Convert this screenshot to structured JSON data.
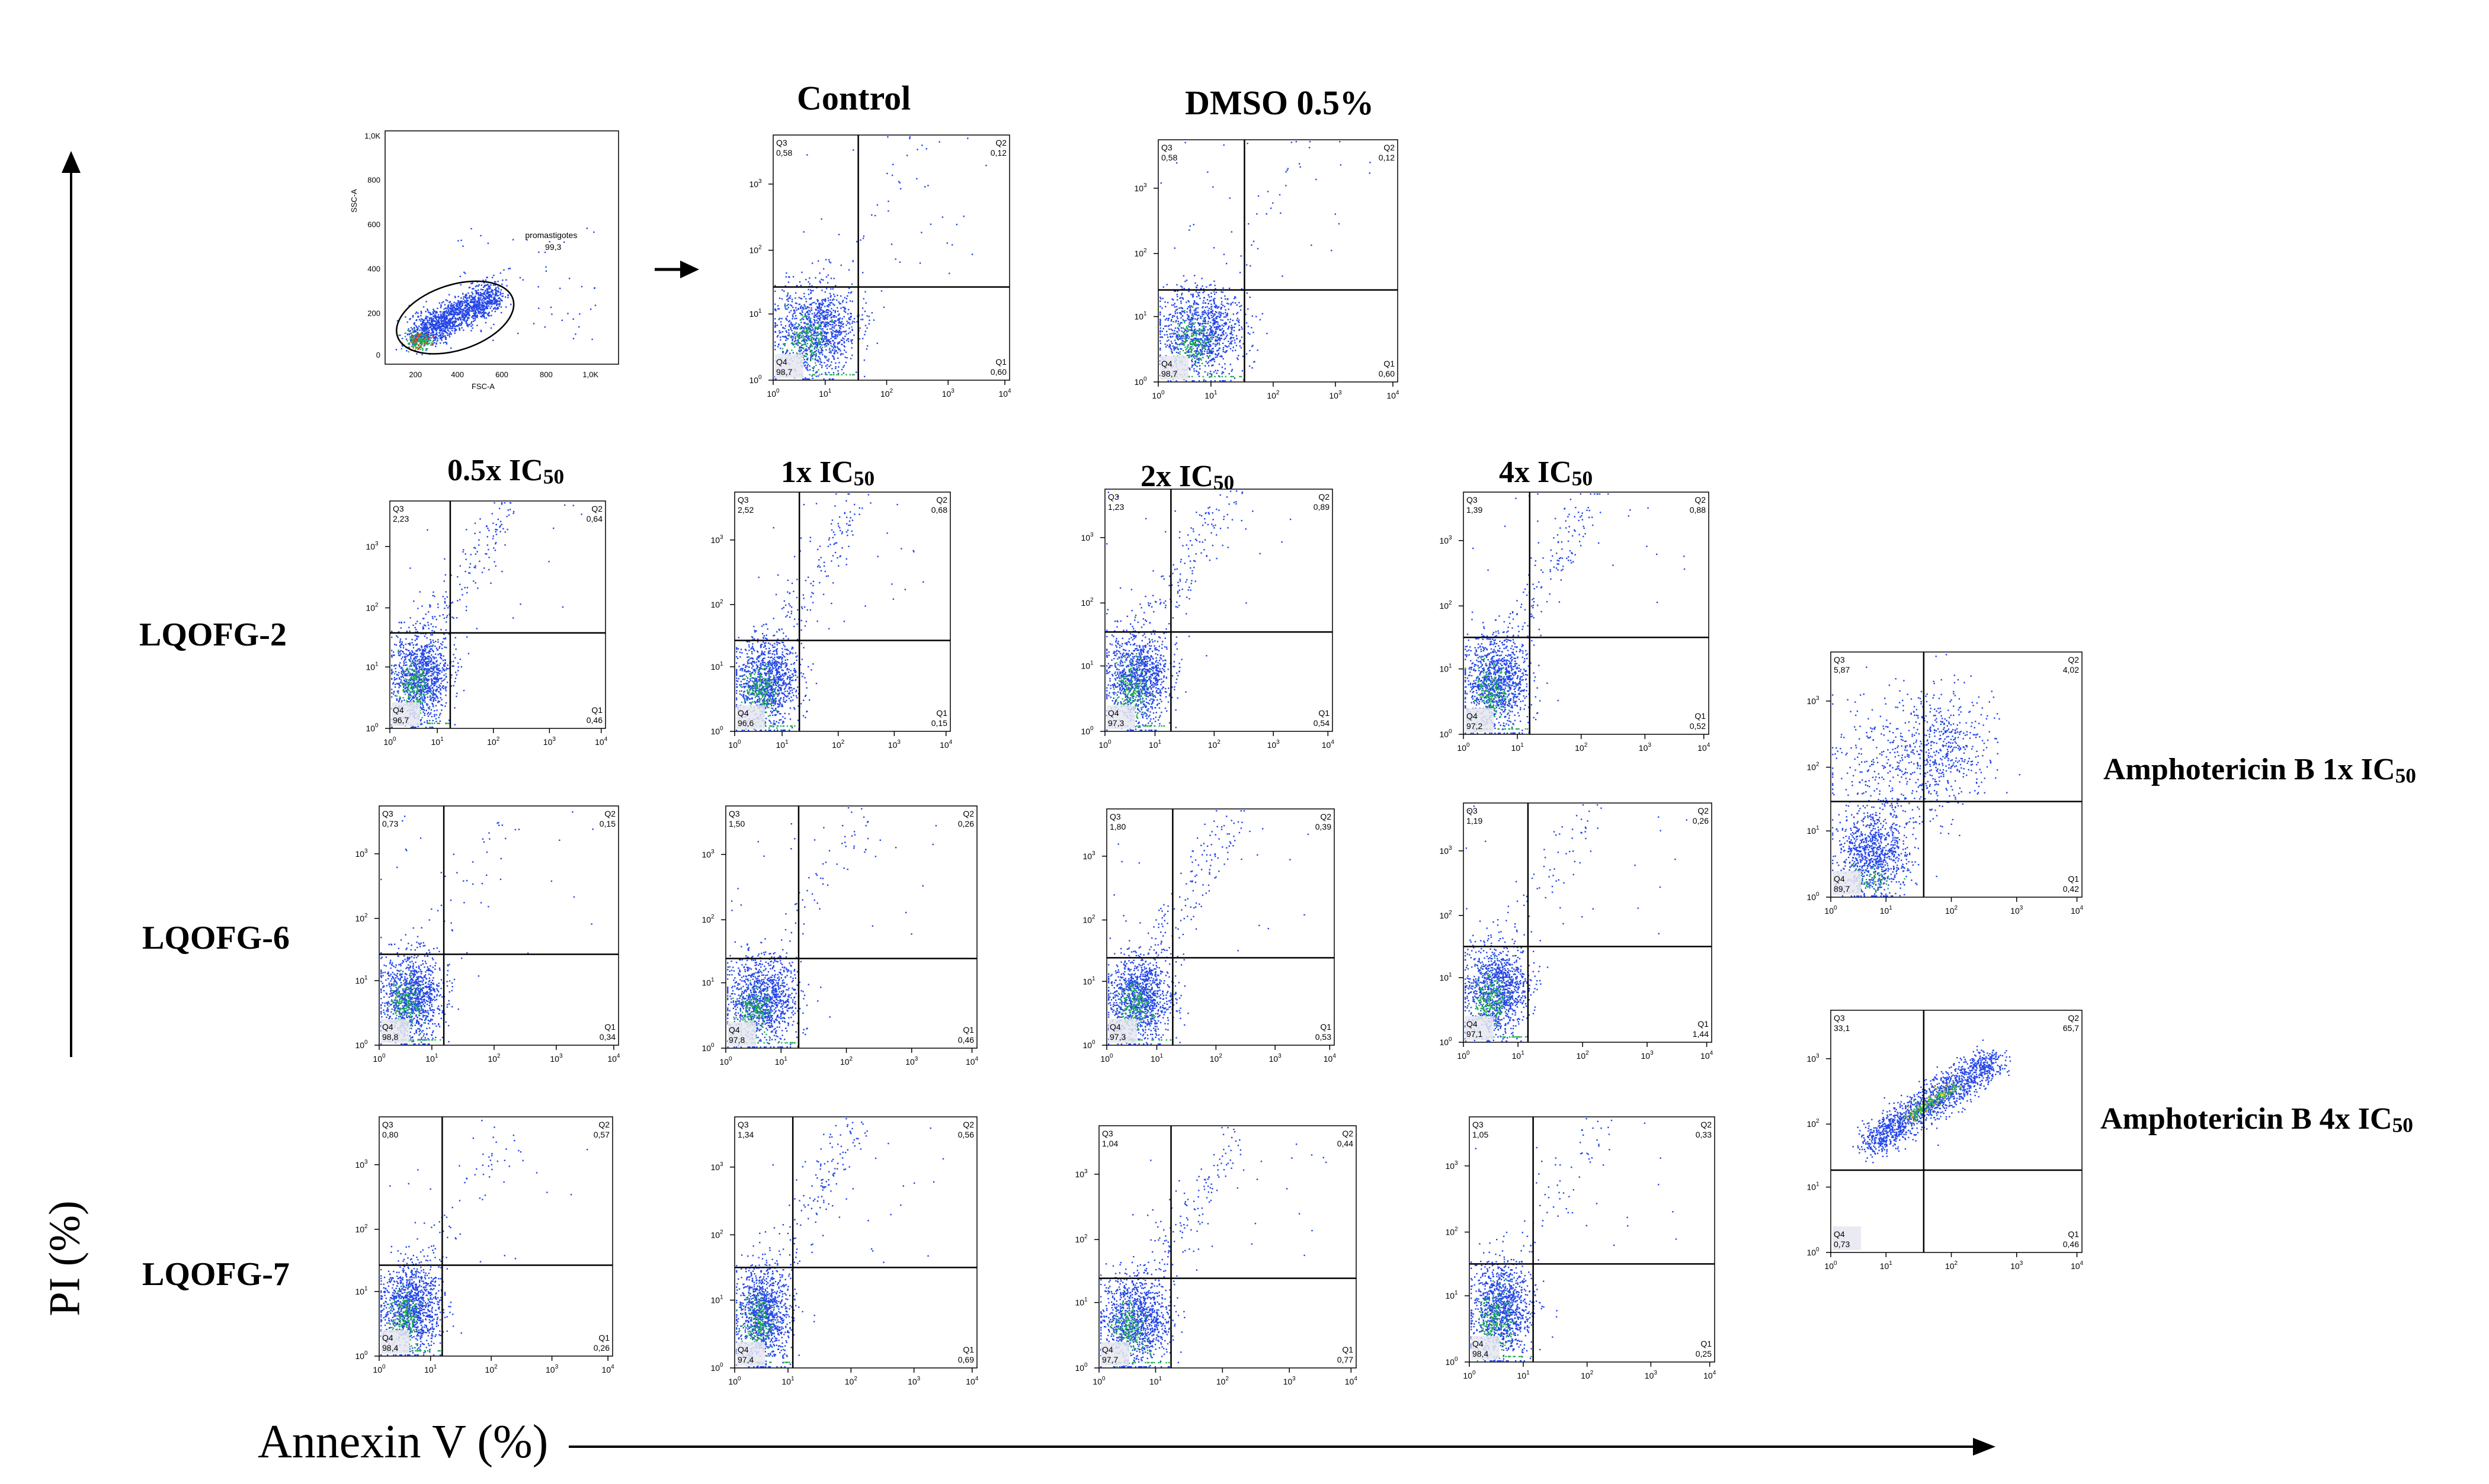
{
  "figure": {
    "y_axis_label": "PI (%)",
    "x_axis_label": "Annexin V (%)",
    "column_headers": [
      "Control",
      "DMSO 0.5%",
      "0.5x IC",
      "1x IC",
      "2x IC",
      "4x IC"
    ],
    "ic_subscript": "50",
    "row_labels": [
      "LQOFG-2",
      "LQOFG-6",
      "LQOFG-7"
    ],
    "side_labels": [
      "Amphotericin B 1x IC",
      "Amphotericin B 4x IC"
    ],
    "colors": {
      "points": "#2446e8",
      "dense": "#22b14c",
      "core": "#ff3300",
      "axis": "#000000"
    }
  },
  "chart_data": [
    {
      "id": "gate",
      "type": "scatter",
      "title": "",
      "xlabel": "FSC-A",
      "ylabel": "SSC-A",
      "x_ticks": [
        "200",
        "400",
        "600",
        "800",
        "1,0K"
      ],
      "y_ticks": [
        "0",
        "200",
        "400",
        "600",
        "800",
        "1,0K"
      ],
      "gate_label": "promastigotes",
      "gate_value": "99,3"
    },
    {
      "id": "control",
      "type": "scatter",
      "title": "Control",
      "xlabel": "Annexin V",
      "ylabel": "PI",
      "quadrants": {
        "Q1": "0,60",
        "Q2": "0,12",
        "Q3": "0,58",
        "Q4": "98,7"
      }
    },
    {
      "id": "dmso",
      "type": "scatter",
      "title": "DMSO 0.5%",
      "xlabel": "Annexin V",
      "ylabel": "PI",
      "quadrants": {
        "Q1": "0,60",
        "Q2": "0,12",
        "Q3": "0,58",
        "Q4": "98,7"
      }
    },
    {
      "id": "lq2_05",
      "type": "scatter",
      "row": "LQOFG-2",
      "column": "0.5x IC50",
      "quadrants": {
        "Q1": "0,46",
        "Q2": "0,64",
        "Q3": "2,23",
        "Q4": "96,7"
      }
    },
    {
      "id": "lq2_1",
      "type": "scatter",
      "row": "LQOFG-2",
      "column": "1x IC50",
      "quadrants": {
        "Q1": "0,15",
        "Q2": "0,68",
        "Q3": "2,52",
        "Q4": "96,6"
      }
    },
    {
      "id": "lq2_2",
      "type": "scatter",
      "row": "LQOFG-2",
      "column": "2x IC50",
      "quadrants": {
        "Q1": "0,54",
        "Q2": "0,89",
        "Q3": "1,23",
        "Q4": "97,3"
      }
    },
    {
      "id": "lq2_4",
      "type": "scatter",
      "row": "LQOFG-2",
      "column": "4x IC50",
      "quadrants": {
        "Q1": "0,52",
        "Q2": "0,88",
        "Q3": "1,39",
        "Q4": "97,2"
      }
    },
    {
      "id": "lq6_05",
      "type": "scatter",
      "row": "LQOFG-6",
      "column": "0.5x IC50",
      "quadrants": {
        "Q1": "0,34",
        "Q2": "0,15",
        "Q3": "0,73",
        "Q4": "98,8"
      }
    },
    {
      "id": "lq6_1",
      "type": "scatter",
      "row": "LQOFG-6",
      "column": "1x IC50",
      "quadrants": {
        "Q1": "0,46",
        "Q2": "0,26",
        "Q3": "1,50",
        "Q4": "97,8"
      }
    },
    {
      "id": "lq6_2",
      "type": "scatter",
      "row": "LQOFG-6",
      "column": "2x IC50",
      "quadrants": {
        "Q1": "0,53",
        "Q2": "0,39",
        "Q3": "1,80",
        "Q4": "97,3"
      }
    },
    {
      "id": "lq6_4",
      "type": "scatter",
      "row": "LQOFG-6",
      "column": "4x IC50",
      "quadrants": {
        "Q1": "1,44",
        "Q2": "0,26",
        "Q3": "1,19",
        "Q4": "97,1"
      }
    },
    {
      "id": "lq7_05",
      "type": "scatter",
      "row": "LQOFG-7",
      "column": "0.5x IC50",
      "quadrants": {
        "Q1": "0,26",
        "Q2": "0,57",
        "Q3": "0,80",
        "Q4": "98,4"
      }
    },
    {
      "id": "lq7_1",
      "type": "scatter",
      "row": "LQOFG-7",
      "column": "1x IC50",
      "quadrants": {
        "Q1": "0,69",
        "Q2": "0,56",
        "Q3": "1,34",
        "Q4": "97,4"
      }
    },
    {
      "id": "lq7_2",
      "type": "scatter",
      "row": "LQOFG-7",
      "column": "2x IC50",
      "quadrants": {
        "Q1": "0,77",
        "Q2": "0,44",
        "Q3": "1,04",
        "Q4": "97,7"
      }
    },
    {
      "id": "lq7_4",
      "type": "scatter",
      "row": "LQOFG-7",
      "column": "4x IC50",
      "quadrants": {
        "Q1": "0,25",
        "Q2": "0,33",
        "Q3": "1,05",
        "Q4": "98,4"
      }
    },
    {
      "id": "ampho1",
      "type": "scatter",
      "title": "Amphotericin B 1x IC50",
      "quadrants": {
        "Q1": "0,42",
        "Q2": "4,02",
        "Q3": "5,87",
        "Q4": "89,7"
      }
    },
    {
      "id": "ampho4",
      "type": "scatter",
      "title": "Amphotericin B 4x IC50",
      "quadrants": {
        "Q1": "0,46",
        "Q2": "65,7",
        "Q3": "33,1",
        "Q4": "0,73"
      }
    }
  ]
}
